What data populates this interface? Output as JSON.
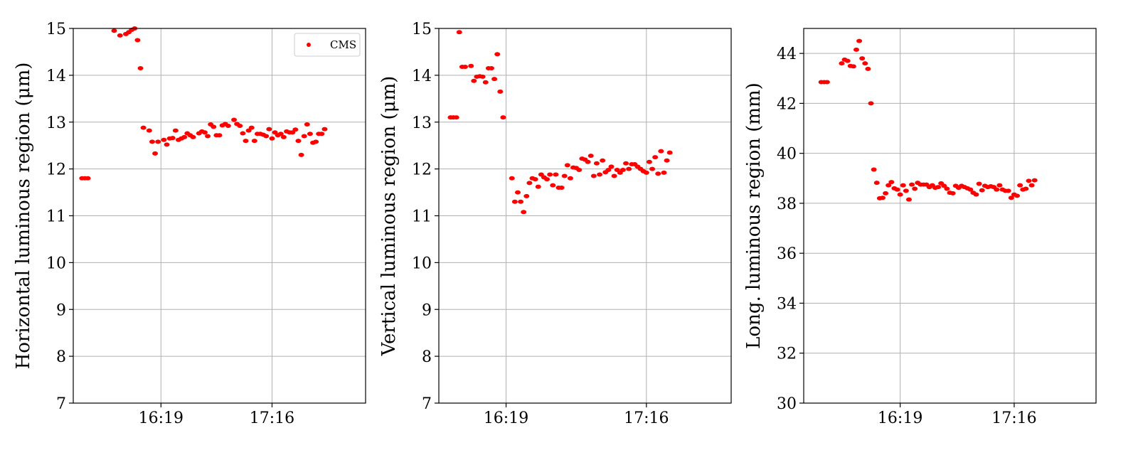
{
  "chart_data": [
    {
      "type": "scatter",
      "title": "",
      "xlabel": "",
      "ylabel": "Horizontal luminous region (μm)",
      "ylim": [
        7,
        15
      ],
      "yticks": [
        7,
        8,
        9,
        10,
        11,
        12,
        13,
        14,
        15
      ],
      "xlim": [
        0,
        100
      ],
      "xticks": [
        {
          "x": 30,
          "label": "16:19"
        },
        {
          "x": 68,
          "label": "17:16"
        }
      ],
      "grid": true,
      "legend": {
        "placement": "top-right",
        "entries": [
          "CMS"
        ]
      },
      "series": [
        {
          "name": "CMS",
          "color": "#ff0000",
          "points": [
            [
              3,
              11.8
            ],
            [
              4,
              11.8
            ],
            [
              5,
              11.8
            ],
            [
              14,
              14.95
            ],
            [
              16,
              14.85
            ],
            [
              18,
              14.88
            ],
            [
              19,
              14.92
            ],
            [
              20,
              14.97
            ],
            [
              21,
              15.0
            ],
            [
              22,
              14.75
            ],
            [
              23,
              14.15
            ],
            [
              24,
              12.88
            ],
            [
              26,
              12.82
            ],
            [
              27,
              12.58
            ],
            [
              28,
              12.33
            ],
            [
              29,
              12.58
            ],
            [
              31,
              12.62
            ],
            [
              32,
              12.52
            ],
            [
              33,
              12.65
            ],
            [
              34,
              12.66
            ],
            [
              35,
              12.82
            ],
            [
              36,
              12.62
            ],
            [
              37,
              12.65
            ],
            [
              38,
              12.68
            ],
            [
              39,
              12.76
            ],
            [
              40,
              12.72
            ],
            [
              41,
              12.68
            ],
            [
              43,
              12.76
            ],
            [
              44,
              12.8
            ],
            [
              45,
              12.78
            ],
            [
              46,
              12.7
            ],
            [
              47,
              12.95
            ],
            [
              48,
              12.9
            ],
            [
              49,
              12.72
            ],
            [
              50,
              12.72
            ],
            [
              51,
              12.93
            ],
            [
              52,
              12.96
            ],
            [
              53,
              12.92
            ],
            [
              55,
              13.05
            ],
            [
              56,
              12.96
            ],
            [
              57,
              12.92
            ],
            [
              58,
              12.76
            ],
            [
              59,
              12.6
            ],
            [
              60,
              12.82
            ],
            [
              61,
              12.88
            ],
            [
              62,
              12.6
            ],
            [
              63,
              12.75
            ],
            [
              64,
              12.75
            ],
            [
              65,
              12.73
            ],
            [
              66,
              12.7
            ],
            [
              67,
              12.85
            ],
            [
              68,
              12.65
            ],
            [
              69,
              12.78
            ],
            [
              70,
              12.72
            ],
            [
              71,
              12.75
            ],
            [
              72,
              12.68
            ],
            [
              73,
              12.8
            ],
            [
              74,
              12.78
            ],
            [
              75,
              12.78
            ],
            [
              76,
              12.84
            ],
            [
              77,
              12.6
            ],
            [
              78,
              12.3
            ],
            [
              79,
              12.7
            ],
            [
              80,
              12.95
            ],
            [
              81,
              12.75
            ],
            [
              82,
              12.56
            ],
            [
              83,
              12.58
            ],
            [
              84,
              12.75
            ],
            [
              85,
              12.75
            ],
            [
              86,
              12.85
            ]
          ]
        }
      ]
    },
    {
      "type": "scatter",
      "title": "",
      "xlabel": "",
      "ylabel": "Vertical luminous region (μm)",
      "ylim": [
        7,
        15
      ],
      "yticks": [
        7,
        8,
        9,
        10,
        11,
        12,
        13,
        14,
        15
      ],
      "xlim": [
        0,
        100
      ],
      "xticks": [
        {
          "x": 23,
          "label": "16:19"
        },
        {
          "x": 71,
          "label": "17:16"
        }
      ],
      "grid": true,
      "series": [
        {
          "name": "",
          "color": "#ff0000",
          "points": [
            [
              4,
              13.1
            ],
            [
              5,
              13.1
            ],
            [
              6,
              13.1
            ],
            [
              7,
              14.92
            ],
            [
              8,
              14.18
            ],
            [
              9,
              14.18
            ],
            [
              11,
              14.2
            ],
            [
              12,
              13.88
            ],
            [
              13,
              13.97
            ],
            [
              14,
              13.98
            ],
            [
              15,
              13.97
            ],
            [
              16,
              13.85
            ],
            [
              17,
              14.15
            ],
            [
              18,
              14.15
            ],
            [
              19,
              13.92
            ],
            [
              20,
              14.45
            ],
            [
              21,
              13.65
            ],
            [
              22,
              13.1
            ],
            [
              25,
              11.8
            ],
            [
              26,
              11.3
            ],
            [
              27,
              11.5
            ],
            [
              28,
              11.3
            ],
            [
              29,
              11.08
            ],
            [
              30,
              11.42
            ],
            [
              31,
              11.7
            ],
            [
              32,
              11.8
            ],
            [
              33,
              11.78
            ],
            [
              34,
              11.62
            ],
            [
              35,
              11.88
            ],
            [
              36,
              11.82
            ],
            [
              37,
              11.78
            ],
            [
              38,
              11.88
            ],
            [
              39,
              11.65
            ],
            [
              40,
              11.88
            ],
            [
              41,
              11.6
            ],
            [
              42,
              11.6
            ],
            [
              43,
              11.85
            ],
            [
              44,
              12.08
            ],
            [
              45,
              11.8
            ],
            [
              46,
              12.03
            ],
            [
              47,
              12.02
            ],
            [
              48,
              11.98
            ],
            [
              49,
              12.22
            ],
            [
              50,
              12.2
            ],
            [
              51,
              12.15
            ],
            [
              52,
              12.28
            ],
            [
              53,
              11.85
            ],
            [
              54,
              12.12
            ],
            [
              55,
              11.88
            ],
            [
              56,
              12.18
            ],
            [
              57,
              11.93
            ],
            [
              58,
              11.98
            ],
            [
              59,
              12.05
            ],
            [
              60,
              11.85
            ],
            [
              61,
              11.98
            ],
            [
              62,
              11.92
            ],
            [
              63,
              11.98
            ],
            [
              64,
              12.12
            ],
            [
              65,
              12.0
            ],
            [
              66,
              12.1
            ],
            [
              67,
              12.1
            ],
            [
              68,
              12.05
            ],
            [
              69,
              12.0
            ],
            [
              70,
              11.95
            ],
            [
              71,
              11.92
            ],
            [
              72,
              12.15
            ],
            [
              73,
              12.0
            ],
            [
              74,
              12.25
            ],
            [
              75,
              11.9
            ],
            [
              76,
              12.38
            ],
            [
              77,
              11.92
            ],
            [
              78,
              12.18
            ],
            [
              79,
              12.35
            ]
          ]
        }
      ]
    },
    {
      "type": "scatter",
      "title": "",
      "xlabel": "",
      "ylabel": "Long. luminous region (mm)",
      "ylim": [
        30,
        45
      ],
      "yticks": [
        30,
        32,
        34,
        36,
        38,
        40,
        42,
        44
      ],
      "xlim": [
        0,
        100
      ],
      "xticks": [
        {
          "x": 33,
          "label": "16:19"
        },
        {
          "x": 72,
          "label": "17:16"
        }
      ],
      "grid": true,
      "series": [
        {
          "name": "",
          "color": "#ff0000",
          "points": [
            [
              6,
              42.85
            ],
            [
              7,
              42.85
            ],
            [
              8,
              42.85
            ],
            [
              13,
              43.6
            ],
            [
              14,
              43.75
            ],
            [
              15,
              43.7
            ],
            [
              16,
              43.5
            ],
            [
              17,
              43.48
            ],
            [
              18,
              44.15
            ],
            [
              19,
              44.5
            ],
            [
              20,
              43.8
            ],
            [
              21,
              43.6
            ],
            [
              22,
              43.38
            ],
            [
              23,
              42.0
            ],
            [
              24,
              39.35
            ],
            [
              25,
              38.82
            ],
            [
              26,
              38.2
            ],
            [
              27,
              38.22
            ],
            [
              28,
              38.4
            ],
            [
              29,
              38.72
            ],
            [
              30,
              38.85
            ],
            [
              31,
              38.6
            ],
            [
              32,
              38.55
            ],
            [
              33,
              38.35
            ],
            [
              34,
              38.72
            ],
            [
              35,
              38.5
            ],
            [
              36,
              38.15
            ],
            [
              37,
              38.75
            ],
            [
              38,
              38.58
            ],
            [
              39,
              38.82
            ],
            [
              40,
              38.75
            ],
            [
              41,
              38.75
            ],
            [
              42,
              38.75
            ],
            [
              43,
              38.65
            ],
            [
              44,
              38.72
            ],
            [
              45,
              38.62
            ],
            [
              46,
              38.65
            ],
            [
              47,
              38.8
            ],
            [
              48,
              38.7
            ],
            [
              49,
              38.58
            ],
            [
              50,
              38.42
            ],
            [
              51,
              38.4
            ],
            [
              52,
              38.7
            ],
            [
              53,
              38.62
            ],
            [
              54,
              38.7
            ],
            [
              55,
              38.65
            ],
            [
              56,
              38.6
            ],
            [
              57,
              38.55
            ],
            [
              58,
              38.42
            ],
            [
              59,
              38.35
            ],
            [
              60,
              38.78
            ],
            [
              61,
              38.52
            ],
            [
              62,
              38.7
            ],
            [
              63,
              38.65
            ],
            [
              64,
              38.68
            ],
            [
              65,
              38.65
            ],
            [
              66,
              38.55
            ],
            [
              67,
              38.72
            ],
            [
              68,
              38.55
            ],
            [
              69,
              38.5
            ],
            [
              70,
              38.5
            ],
            [
              71,
              38.22
            ],
            [
              72,
              38.35
            ],
            [
              73,
              38.3
            ],
            [
              74,
              38.72
            ],
            [
              75,
              38.55
            ],
            [
              76,
              38.58
            ],
            [
              77,
              38.9
            ],
            [
              78,
              38.72
            ],
            [
              79,
              38.92
            ]
          ]
        }
      ]
    }
  ]
}
